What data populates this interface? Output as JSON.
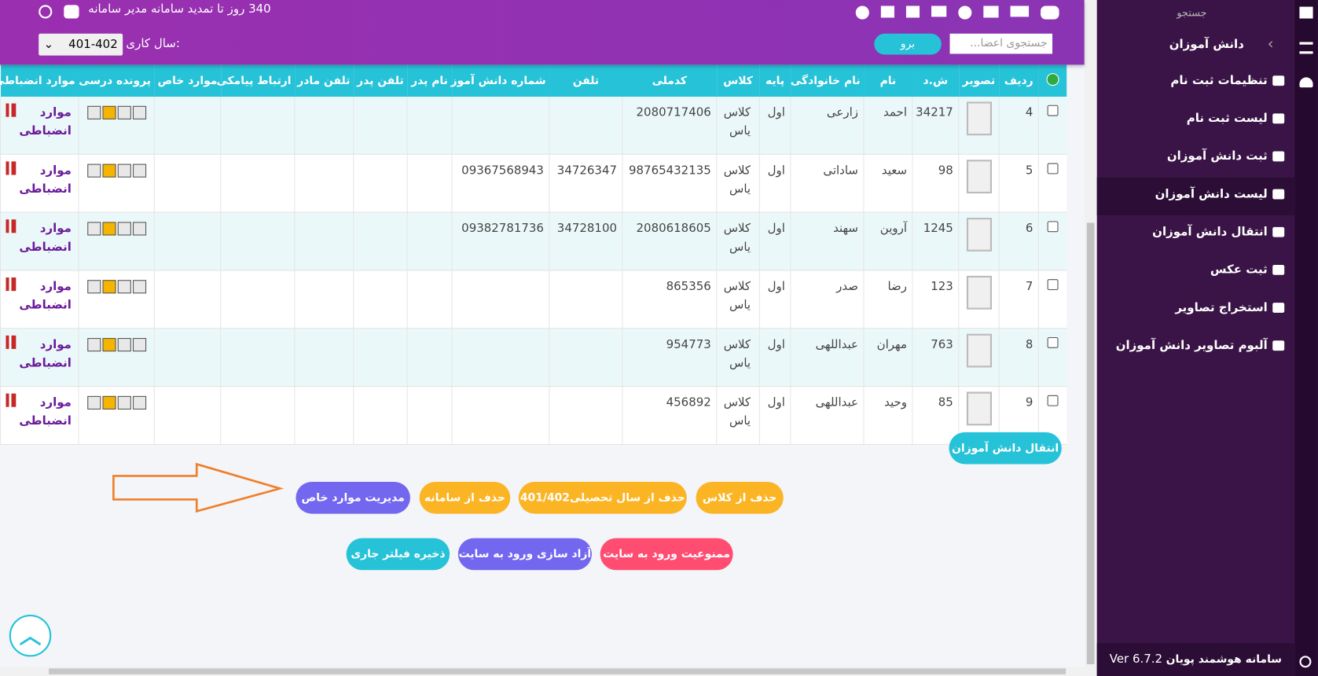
{
  "header": {
    "notice": "340 روز تا تمدید سامانه مدیر سامانه",
    "year_label": "سال کاری:",
    "year_value": "401-402",
    "search_placeholder": "جستجوی اعضا...",
    "search_button": "برو"
  },
  "sidebar": {
    "search": "جستجو",
    "section": "دانش آموزان",
    "menu": [
      "تنظیمات ثبت نام",
      "لیست ثبت نام",
      "ثبت دانش آموزان",
      "لیست دانش آموزان",
      "انتقال دانش آموزان",
      "ثبت عکس",
      "استخراج تصاویر",
      "آلبوم تصاویر دانش آموزان"
    ],
    "footer_title": "سامانه هوشمند پویان",
    "version": "Ver 6.7.2"
  },
  "table": {
    "headers": [
      "ردیف",
      "تصویر",
      "ش.د",
      "نام",
      "نام خانوادگی",
      "پایه",
      "کلاس",
      "کدملی",
      "تلفن",
      "شماره دانش آموز",
      "نام پدر",
      "تلفن پدر",
      "تلفن مادر",
      "ارتباط پیامکی",
      "موارد خاص",
      "پرونده درسی",
      "موارد انضباطی"
    ],
    "rows": [
      [
        "4",
        null,
        "34217",
        "احمد",
        "زارعی",
        "اول",
        "کلاس یاس",
        "2080717406",
        null,
        null,
        null,
        null,
        null,
        null,
        null,
        null,
        "موارد انضباطی"
      ],
      [
        "5",
        null,
        "98",
        "سعید",
        "ساداتی",
        "اول",
        "کلاس یاس",
        "98765432135",
        "34726347",
        "09367568943",
        null,
        null,
        null,
        null,
        null,
        null,
        "موارد انضباطی"
      ],
      [
        "6",
        null,
        "1245",
        "آروین",
        "سهند",
        "اول",
        "کلاس یاس",
        "2080618605",
        "34728100",
        "09382781736",
        null,
        null,
        null,
        null,
        null,
        null,
        "موارد انضباطی"
      ],
      [
        "7",
        null,
        "123",
        "رضا",
        "صدر",
        "اول",
        "کلاس یاس",
        "865356",
        null,
        null,
        null,
        null,
        null,
        null,
        null,
        null,
        "موارد انضباطی"
      ],
      [
        "8",
        null,
        "763",
        "مهران",
        "عبداللهی",
        "اول",
        "کلاس یاس",
        "954773",
        null,
        null,
        null,
        null,
        null,
        null,
        null,
        null,
        "موارد انضباطی"
      ],
      [
        "9",
        null,
        "85",
        "وحید",
        "عبداللهی",
        "اول",
        "کلاس یاس",
        "456892",
        null,
        null,
        null,
        null,
        null,
        null,
        null,
        null,
        "موارد انضباطی"
      ]
    ]
  },
  "actions": {
    "transfer": "انتقال دانش آموزان",
    "row1": [
      "حذف از کلاس",
      "حذف از سال تحصیلی401/402",
      "حذف از سامانه",
      "مدیریت موارد خاص"
    ],
    "row2": [
      "ممنوعیت ورود به سایت",
      "آزاد سازی ورود به سایت",
      "ذخیره فیلتر جاری"
    ]
  }
}
